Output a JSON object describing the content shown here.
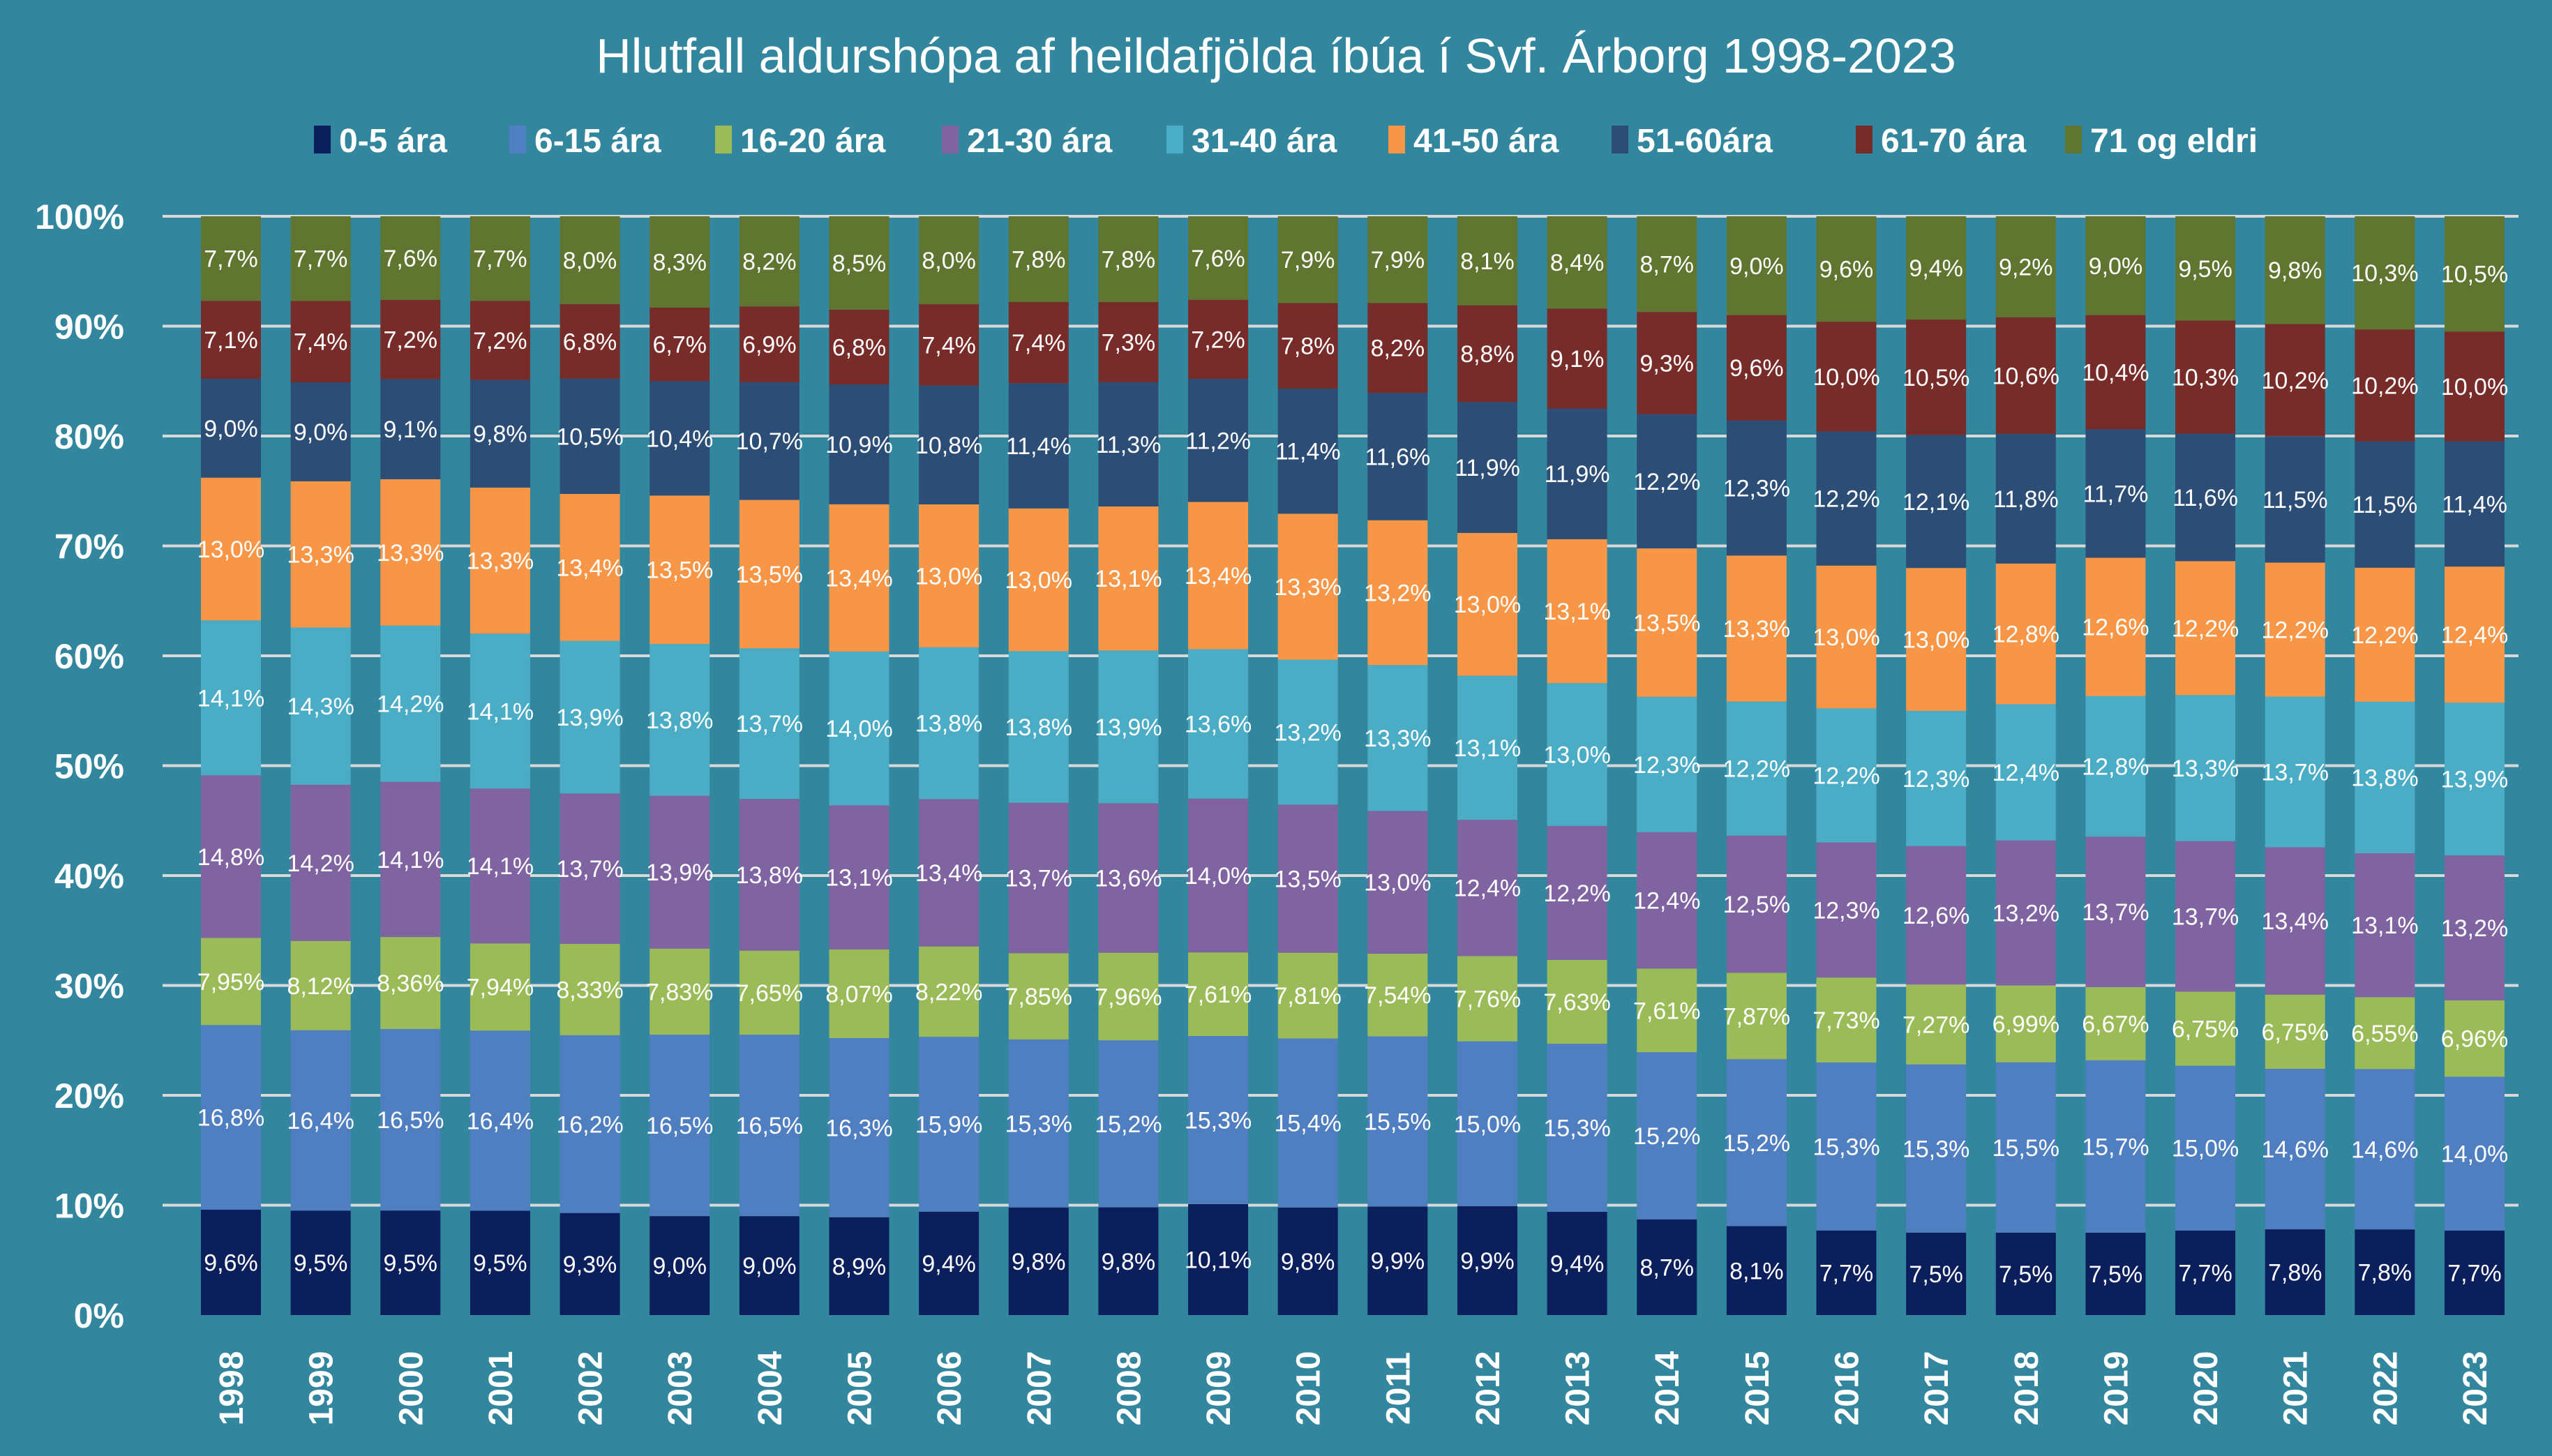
{
  "chart_data": {
    "type": "bar",
    "stacked": true,
    "title": "Hlutfall aldurshópa af heildafjölda íbúa í Svf. Árborg 1998-2023",
    "xlabel": "",
    "ylabel": "",
    "ylim": [
      0,
      100
    ],
    "yticks": [
      "0%",
      "10%",
      "20%",
      "30%",
      "40%",
      "50%",
      "60%",
      "70%",
      "80%",
      "90%",
      "100%"
    ],
    "grid": true,
    "legend_position": "top",
    "background": "#32869d",
    "categories": [
      "1998",
      "1999",
      "2000",
      "2001",
      "2002",
      "2003",
      "2004",
      "2005",
      "2006",
      "2007",
      "2008",
      "2009",
      "2010",
      "2011",
      "2012",
      "2013",
      "2014",
      "2015",
      "2016",
      "2017",
      "2018",
      "2019",
      "2020",
      "2021",
      "2022",
      "2023"
    ],
    "series": [
      {
        "name": "0-5 ára",
        "color": "#0b1f5c",
        "decimals": 1,
        "values": [
          9.6,
          9.5,
          9.5,
          9.5,
          9.3,
          9.0,
          9.0,
          8.9,
          9.4,
          9.8,
          9.8,
          10.1,
          9.8,
          9.9,
          9.9,
          9.4,
          8.7,
          8.1,
          7.7,
          7.5,
          7.5,
          7.5,
          7.7,
          7.8,
          7.8,
          7.7
        ]
      },
      {
        "name": "6-15 ára",
        "color": "#4f7fc0",
        "decimals": 1,
        "values": [
          16.8,
          16.4,
          16.5,
          16.4,
          16.2,
          16.5,
          16.5,
          16.3,
          15.9,
          15.3,
          15.2,
          15.3,
          15.4,
          15.5,
          15.0,
          15.3,
          15.2,
          15.2,
          15.3,
          15.3,
          15.5,
          15.7,
          15.0,
          14.6,
          14.6,
          14.0
        ]
      },
      {
        "name": "16-20 ára",
        "color": "#9bbb59",
        "decimals": 2,
        "values": [
          7.95,
          8.12,
          8.36,
          7.94,
          8.33,
          7.83,
          7.65,
          8.07,
          8.22,
          7.85,
          7.96,
          7.61,
          7.81,
          7.54,
          7.76,
          7.63,
          7.61,
          7.87,
          7.73,
          7.27,
          6.99,
          6.67,
          6.75,
          6.75,
          6.55,
          6.96
        ]
      },
      {
        "name": "21-30 ára",
        "color": "#8064a2",
        "decimals": 1,
        "values": [
          14.8,
          14.2,
          14.1,
          14.1,
          13.7,
          13.9,
          13.8,
          13.1,
          13.4,
          13.7,
          13.6,
          14.0,
          13.5,
          13.0,
          12.4,
          12.2,
          12.4,
          12.5,
          12.3,
          12.6,
          13.2,
          13.7,
          13.7,
          13.4,
          13.1,
          13.2
        ]
      },
      {
        "name": "31-40 ára",
        "color": "#4bacc6",
        "decimals": 1,
        "values": [
          14.1,
          14.3,
          14.2,
          14.1,
          13.9,
          13.8,
          13.7,
          14.0,
          13.8,
          13.8,
          13.9,
          13.6,
          13.2,
          13.3,
          13.1,
          13.0,
          12.3,
          12.2,
          12.2,
          12.3,
          12.4,
          12.8,
          13.3,
          13.7,
          13.8,
          13.9
        ]
      },
      {
        "name": "41-50 ára",
        "color": "#f79646",
        "decimals": 1,
        "values": [
          13.0,
          13.3,
          13.3,
          13.3,
          13.4,
          13.5,
          13.5,
          13.4,
          13.0,
          13.0,
          13.1,
          13.4,
          13.3,
          13.2,
          13.0,
          13.1,
          13.5,
          13.3,
          13.0,
          13.0,
          12.8,
          12.6,
          12.2,
          12.2,
          12.2,
          12.4
        ]
      },
      {
        "name": "51-60ára",
        "color": "#2c4d75",
        "decimals": 1,
        "values": [
          9.0,
          9.0,
          9.1,
          9.8,
          10.5,
          10.4,
          10.7,
          10.9,
          10.8,
          11.4,
          11.3,
          11.2,
          11.4,
          11.6,
          11.9,
          11.9,
          12.2,
          12.3,
          12.2,
          12.1,
          11.8,
          11.7,
          11.6,
          11.5,
          11.5,
          11.4
        ]
      },
      {
        "name": "61-70 ára",
        "color": "#772c2a",
        "decimals": 1,
        "values": [
          7.1,
          7.4,
          7.2,
          7.2,
          6.8,
          6.7,
          6.9,
          6.8,
          7.4,
          7.4,
          7.3,
          7.2,
          7.8,
          8.2,
          8.8,
          9.1,
          9.3,
          9.6,
          10.0,
          10.5,
          10.6,
          10.4,
          10.3,
          10.2,
          10.2,
          10.0
        ]
      },
      {
        "name": "71 og eldri",
        "color": "#5f7530",
        "decimals": 1,
        "values": [
          7.7,
          7.7,
          7.6,
          7.7,
          8.0,
          8.3,
          8.2,
          8.5,
          8.0,
          7.8,
          7.8,
          7.6,
          7.9,
          7.9,
          8.1,
          8.4,
          8.7,
          9.0,
          9.6,
          9.4,
          9.2,
          9.0,
          9.5,
          9.8,
          10.3,
          10.5
        ]
      }
    ]
  }
}
